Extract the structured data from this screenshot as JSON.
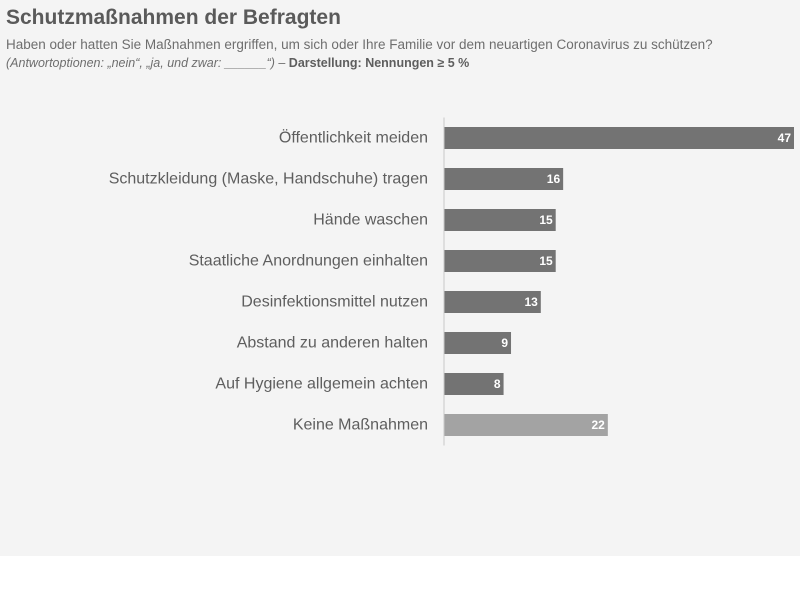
{
  "header": {
    "title": "Schutzmaßnahmen der Befragten",
    "subtitle": "Haben oder hatten Sie Maßnahmen ergriffen, um sich oder Ihre Familie vor dem neuartigen Coronavirus zu schützen?",
    "note_italic": "(Antwortoptionen: „nein“, „ja, und zwar: ______“)",
    "note_dash": " – ",
    "note_bold": "Darstellung: Nennungen ≥ 5 %"
  },
  "colors": {
    "bar": "#737373",
    "bar_highlight": "#a3a3a3",
    "axis": "#c8c8c8",
    "background": "#f4f4f4"
  },
  "chart_data": {
    "type": "bar",
    "orientation": "horizontal",
    "categories": [
      "Öffentlichkeit meiden",
      "Schutzkleidung (Maske, Handschuhe) tragen",
      "Hände waschen",
      "Staatliche Anordnungen einhalten",
      "Desinfektionsmittel nutzen",
      "Abstand zu anderen halten",
      "Auf Hygiene allgemein achten",
      "Keine Maßnahmen"
    ],
    "values": [
      47,
      16,
      15,
      15,
      13,
      9,
      8,
      22
    ],
    "data_labels": [
      "47",
      "16",
      "15",
      "15",
      "13",
      "9",
      "8",
      "22"
    ],
    "highlight_index": 7,
    "xlim": [
      0,
      47
    ],
    "grid": false,
    "legend": "none"
  }
}
